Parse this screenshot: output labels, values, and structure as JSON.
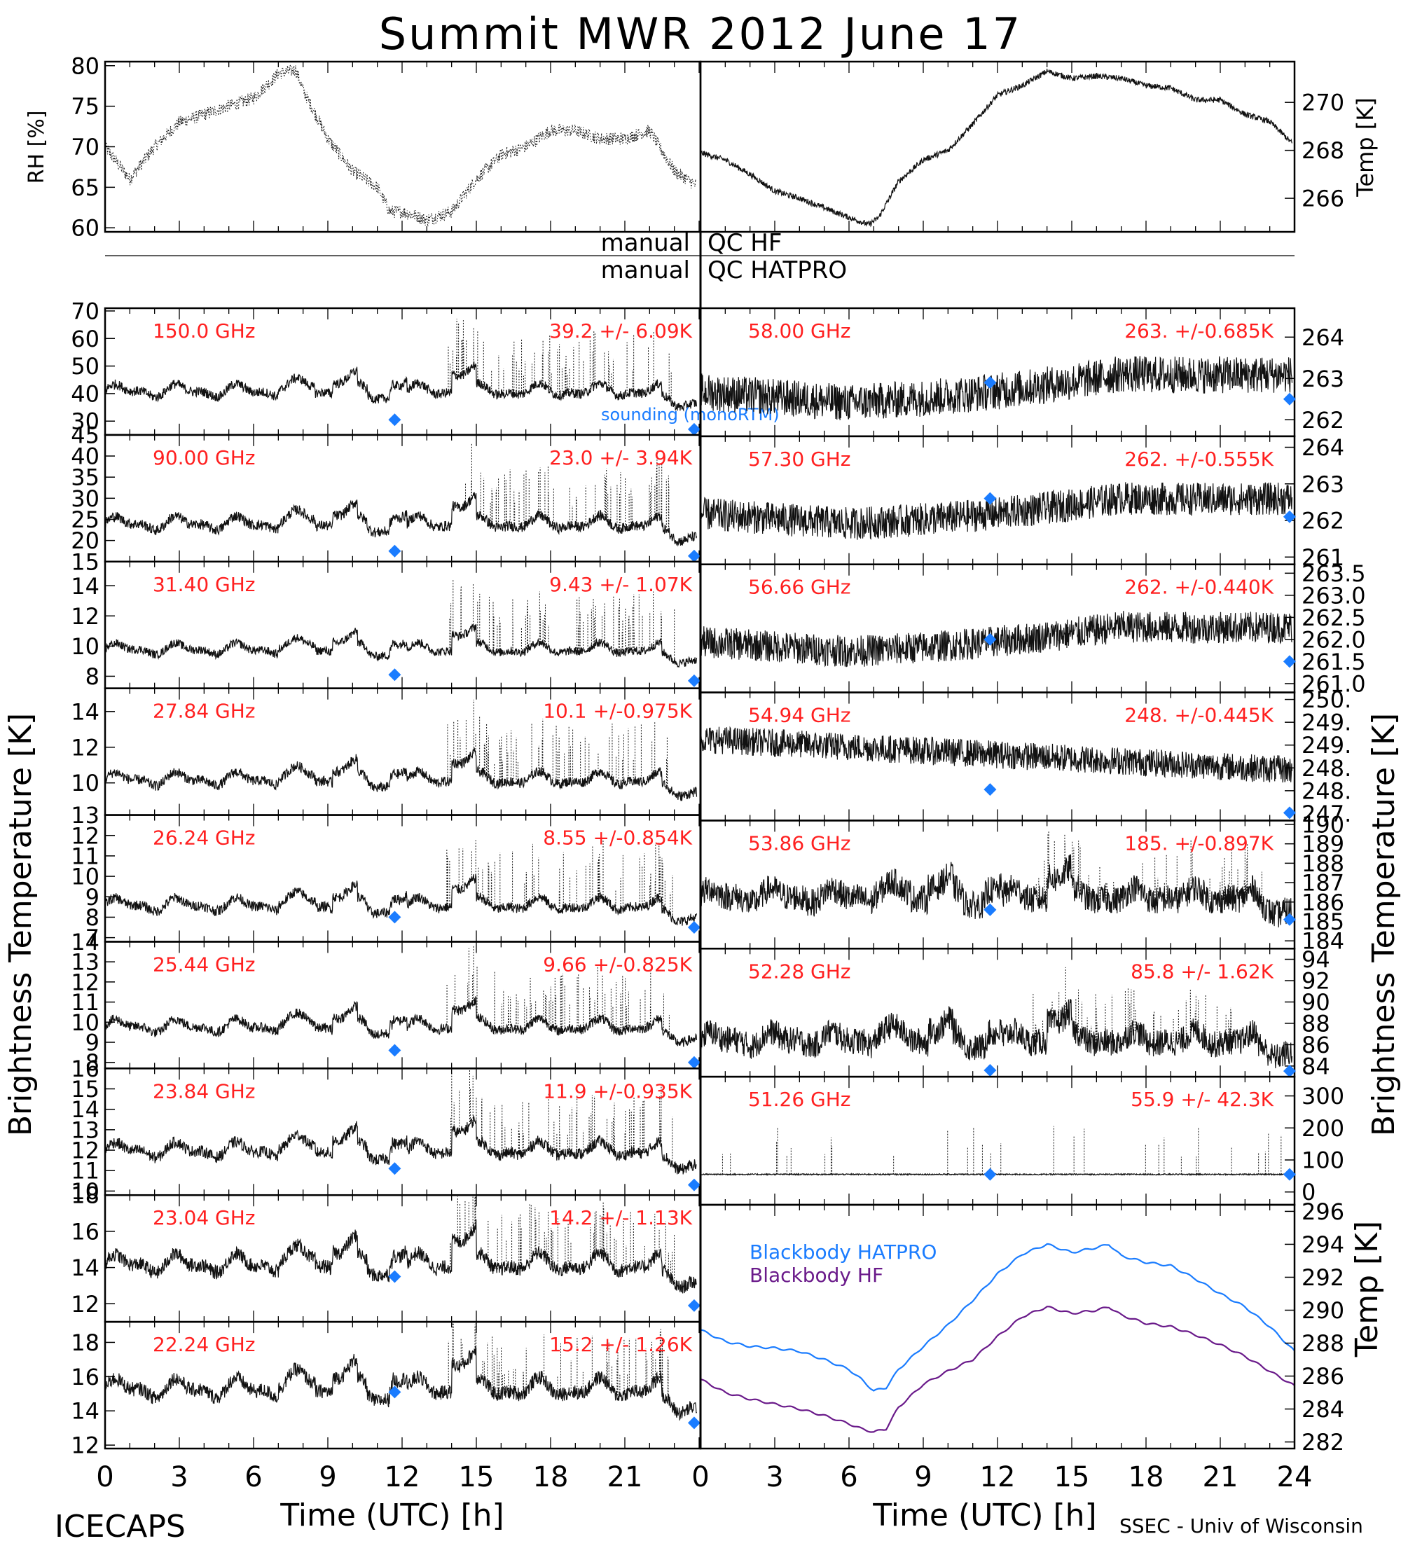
{
  "title": "Summit MWR 2012 June 17",
  "colors": {
    "label": "#ff2020",
    "sounding": "#1a7cff",
    "hatpro": "#1a7cff",
    "hf": "#6a1a8a",
    "trace": "#111111"
  },
  "top_panels": {
    "left": {
      "ylabel": "RH [%]",
      "yticks": [
        "60",
        "65",
        "70",
        "75",
        "80"
      ],
      "ylim": [
        59.5,
        80.5
      ]
    },
    "right": {
      "ylabel": "Temp [K]",
      "yticks": [
        "266",
        "268",
        "270"
      ],
      "ylim": [
        264.6,
        271.7
      ]
    }
  },
  "qc": {
    "row1": [
      "manual",
      "QC HF"
    ],
    "row2": [
      "manual",
      "QC HATPRO"
    ]
  },
  "side_labels": {
    "left": "Brightness Temperature [K]",
    "right": "Brightness Temperature [K]"
  },
  "legend": {
    "hatpro": "Blackbody HATPRO",
    "hf": "Blackbody HF"
  },
  "xaxis": {
    "left_ticks": [
      "0",
      "3",
      "6",
      "9",
      "12",
      "15",
      "18",
      "21"
    ],
    "right_ticks": [
      "0",
      "3",
      "6",
      "9",
      "12",
      "15",
      "18",
      "21",
      "24"
    ],
    "xlabel": "Time (UTC) [h]"
  },
  "footer": {
    "left": "ICECAPS",
    "right": "SSEC - Univ of Wisconsin"
  },
  "channels_left": [
    {
      "freq": "150.0 GHz",
      "stat": "39.2 +/- 6.09K",
      "ylim": [
        25,
        71
      ],
      "yticks": [
        "30",
        "40",
        "50",
        "60",
        "70"
      ],
      "base": 41,
      "amp": 5,
      "sounding": [
        [
          11.7,
          30.5
        ],
        [
          23.8,
          26.5
        ]
      ],
      "extra": "sounding (monoRTM)"
    },
    {
      "freq": "90.00 GHz",
      "stat": "23.0 +/- 3.94K",
      "ylim": [
        15,
        45
      ],
      "yticks": [
        "15",
        "20",
        "25",
        "30",
        "35",
        "40",
        "45"
      ],
      "base": 24,
      "amp": 3.5,
      "sounding": [
        [
          11.7,
          17.5
        ],
        [
          23.8,
          15.5
        ]
      ]
    },
    {
      "freq": "31.40 GHz",
      "stat": "9.43 +/- 1.07K",
      "ylim": [
        7.2,
        15.6
      ],
      "yticks": [
        "8",
        "10",
        "12",
        "14"
      ],
      "base": 9.8,
      "amp": 0.8,
      "sounding": [
        [
          11.7,
          8.1
        ],
        [
          23.8,
          7.7
        ]
      ]
    },
    {
      "freq": "27.84 GHz",
      "stat": "10.1 +/-0.975K",
      "ylim": [
        8.2,
        15.3
      ],
      "yticks": [
        "10",
        "12",
        "14"
      ],
      "base": 10.2,
      "amp": 0.8,
      "sounding": []
    },
    {
      "freq": "26.24 GHz",
      "stat": "8.55 +/-0.854K",
      "ylim": [
        6.8,
        13
      ],
      "yticks": [
        "7",
        "8",
        "9",
        "10",
        "11",
        "12",
        "13"
      ],
      "base": 8.6,
      "amp": 0.7,
      "sounding": [
        [
          11.7,
          8.0
        ],
        [
          23.8,
          7.5
        ]
      ]
    },
    {
      "freq": "25.44 GHz",
      "stat": "9.66 +/-0.825K",
      "ylim": [
        7.7,
        14
      ],
      "yticks": [
        "8",
        "9",
        "10",
        "11",
        "12",
        "13",
        "14"
      ],
      "base": 9.8,
      "amp": 0.7,
      "sounding": [
        [
          11.7,
          8.6
        ],
        [
          23.8,
          8.0
        ]
      ]
    },
    {
      "freq": "23.84 GHz",
      "stat": "11.9 +/-0.935K",
      "ylim": [
        9.8,
        16
      ],
      "yticks": [
        "10",
        "11",
        "12",
        "13",
        "14",
        "15",
        "16"
      ],
      "base": 12,
      "amp": 0.8,
      "sounding": [
        [
          11.7,
          11.1
        ],
        [
          23.8,
          10.3
        ]
      ]
    },
    {
      "freq": "23.04 GHz",
      "stat": "14.2 +/- 1.13K",
      "ylim": [
        11,
        18
      ],
      "yticks": [
        "12",
        "14",
        "16",
        "18"
      ],
      "base": 14.2,
      "amp": 1.1,
      "sounding": [
        [
          11.7,
          13.5
        ],
        [
          23.8,
          11.9
        ]
      ]
    },
    {
      "freq": "22.24 GHz",
      "stat": "15.2 +/- 1.26K",
      "ylim": [
        11.8,
        19.2
      ],
      "yticks": [
        "12",
        "14",
        "16",
        "18"
      ],
      "base": 15.3,
      "amp": 1.2,
      "sounding": [
        [
          11.7,
          15.1
        ],
        [
          23.8,
          13.3
        ]
      ]
    }
  ],
  "channels_right": [
    {
      "freq": "58.00 GHz",
      "stat": "263. +/-0.685K",
      "ylim": [
        261.6,
        264.7
      ],
      "yticks": [
        "262",
        "263",
        "264"
      ],
      "base": 263,
      "amp": 0.5,
      "sounding": [
        [
          11.7,
          262.9
        ],
        [
          23.8,
          262.5
        ]
      ]
    },
    {
      "freq": "57.30 GHz",
      "stat": "262. +/-0.555K",
      "ylim": [
        260.8,
        264.3
      ],
      "yticks": [
        "261",
        "262",
        "263",
        "264"
      ],
      "base": 262.5,
      "amp": 0.5,
      "sounding": [
        [
          11.7,
          262.6
        ],
        [
          23.8,
          262.1
        ]
      ]
    },
    {
      "freq": "56.66 GHz",
      "stat": "262. +/-0.440K",
      "ylim": [
        260.8,
        263.7
      ],
      "yticks": [
        "261.0",
        "261.5",
        "262.0",
        "262.5",
        "263.0",
        "263.5"
      ],
      "base": 262.2,
      "amp": 0.4,
      "sounding": [
        [
          11.7,
          262.0
        ],
        [
          23.8,
          261.5
        ]
      ]
    },
    {
      "freq": "54.94 GHz",
      "stat": "248. +/-0.445K",
      "ylim": [
        247,
        250.3
      ],
      "yticks": [
        "247.",
        "248.",
        "248.",
        "249.",
        "249.",
        "250."
      ],
      "base": 248.7,
      "amp": 0.4,
      "sounding": [
        [
          11.7,
          247.8
        ],
        [
          23.8,
          247.2
        ]
      ]
    },
    {
      "freq": "53.86 GHz",
      "stat": "185. +/-0.897K",
      "ylim": [
        183.6,
        190.2
      ],
      "yticks": [
        "184",
        "185",
        "186",
        "187",
        "188",
        "189",
        "190"
      ],
      "base": 186.3,
      "amp": 0.8,
      "sounding": [
        [
          11.7,
          185.6
        ],
        [
          23.8,
          185.1
        ]
      ]
    },
    {
      "freq": "52.28 GHz",
      "stat": "85.8 +/- 1.62K",
      "ylim": [
        83,
        95
      ],
      "yticks": [
        "84",
        "86",
        "88",
        "90",
        "92",
        "94"
      ],
      "base": 86.5,
      "amp": 1.4,
      "sounding": [
        [
          11.7,
          83.6
        ],
        [
          23.8,
          83.3
        ]
      ]
    },
    {
      "freq": "51.26 GHz",
      "stat": "55.9 +/- 42.3K",
      "ylim": [
        -40,
        360
      ],
      "yticks": [
        "0",
        "100",
        "200",
        "300"
      ],
      "base": 55,
      "amp": 4,
      "sounding": [
        [
          11.7,
          55
        ],
        [
          23.8,
          55
        ]
      ]
    }
  ],
  "blackbody": {
    "ylabel": "Temp [K]",
    "ylim": [
      281.6,
      296.4
    ],
    "yticks": [
      "282",
      "284",
      "286",
      "288",
      "290",
      "292",
      "294",
      "296"
    ],
    "x": [
      0,
      1,
      2,
      3,
      4,
      5,
      6,
      6.5,
      7,
      7.5,
      8,
      9,
      10,
      11,
      12,
      13,
      14,
      15,
      16,
      16.5,
      17,
      18,
      19,
      20,
      21,
      22,
      23,
      24
    ],
    "hatpro": [
      288.8,
      288.1,
      287.8,
      287.7,
      287.5,
      287.0,
      286.4,
      285.8,
      285.1,
      285.3,
      286.4,
      287.8,
      289.1,
      290.6,
      292.2,
      293.4,
      294.0,
      293.5,
      293.8,
      294.0,
      293.3,
      292.9,
      292.7,
      291.9,
      291.0,
      290.2,
      289.0,
      287.5
    ],
    "hf": [
      285.8,
      285.0,
      284.6,
      284.3,
      284.0,
      283.6,
      283.1,
      282.8,
      282.6,
      282.8,
      284.1,
      285.5,
      286.3,
      287.0,
      288.4,
      289.6,
      290.2,
      289.8,
      290.0,
      290.2,
      289.7,
      289.2,
      289.0,
      288.5,
      287.9,
      287.2,
      286.3,
      285.4
    ]
  },
  "chart_data": {
    "type": "line",
    "title": "Summit MWR 2012 June 17",
    "xlabel": "Time (UTC) [h]",
    "xlim": [
      0,
      24
    ],
    "panels": [
      {
        "name": "RH",
        "ylabel": "RH [%]",
        "ylim": [
          59.5,
          80.5
        ],
        "series": [
          {
            "x": [
              0,
              1,
              2,
              3,
              4,
              5,
              6,
              7,
              7.7,
              8,
              9,
              10,
              11,
              11.5,
              12,
              13,
              14,
              15,
              16,
              17,
              18,
              19,
              20,
              21,
              22,
              23,
              24
            ],
            "values": [
              70,
              66,
              70,
              73,
              74,
              75,
              76,
              79,
              79.5,
              77,
              71,
              67,
              65,
              62,
              62,
              61,
              62,
              66,
              69,
              70,
              72,
              72,
              71,
              71,
              72,
              67,
              65
            ]
          }
        ]
      },
      {
        "name": "Temp",
        "ylabel": "Temp [K]",
        "ylim": [
          264.6,
          271.7
        ],
        "series": [
          {
            "x": [
              0,
              1,
              2,
              3,
              4,
              5,
              6,
              6.8,
              7.2,
              8,
              9,
              10,
              11,
              12,
              13,
              14,
              15,
              16,
              17,
              18,
              19,
              20,
              21,
              22,
              23,
              24
            ],
            "values": [
              267.9,
              267.6,
              267.0,
              266.3,
              266.0,
              265.6,
              265.2,
              264.9,
              265.2,
              266.7,
              267.6,
              268.0,
              269.1,
              270.3,
              270.7,
              271.3,
              271.0,
              271.1,
              271.0,
              270.7,
              270.6,
              270.1,
              270.1,
              269.5,
              269.2,
              268.2
            ]
          }
        ]
      }
    ],
    "channels": [
      "150.0 GHz",
      "90.00 GHz",
      "31.40 GHz",
      "27.84 GHz",
      "26.24 GHz",
      "25.44 GHz",
      "23.84 GHz",
      "23.04 GHz",
      "22.24 GHz",
      "58.00 GHz",
      "57.30 GHz",
      "56.66 GHz",
      "54.94 GHz",
      "53.86 GHz",
      "52.28 GHz",
      "51.26 GHz"
    ],
    "channel_means": [
      39.2,
      23.0,
      9.43,
      10.1,
      8.55,
      9.66,
      11.9,
      14.2,
      15.2,
      263,
      262,
      262,
      248,
      185,
      85.8,
      55.9
    ],
    "channel_std": [
      6.09,
      3.94,
      1.07,
      0.975,
      0.854,
      0.825,
      0.935,
      1.13,
      1.26,
      0.685,
      0.555,
      0.44,
      0.445,
      0.897,
      1.62,
      42.3
    ],
    "blackbody_series": [
      {
        "name": "Blackbody HATPRO",
        "x": [
          0,
          3,
          6,
          7,
          8,
          12,
          14,
          16.5,
          20,
          24
        ],
        "values": [
          288.8,
          287.7,
          286.4,
          285.1,
          286.4,
          292.2,
          294.0,
          294.0,
          291.9,
          287.5
        ]
      },
      {
        "name": "Blackbody HF",
        "x": [
          0,
          3,
          6,
          7,
          8,
          12,
          14,
          16.5,
          20,
          24
        ],
        "values": [
          285.8,
          284.3,
          283.1,
          282.6,
          284.1,
          288.4,
          290.2,
          290.2,
          288.5,
          285.4
        ]
      }
    ]
  }
}
